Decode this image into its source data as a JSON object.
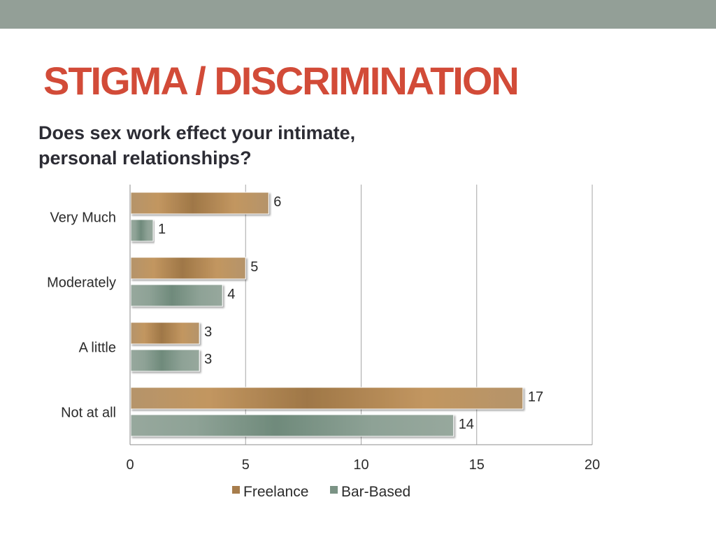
{
  "slide": {
    "title": "STIGMA / DISCRIMINATION",
    "question_lines": [
      "Does sex work effect your intimate,",
      "personal relationships?"
    ]
  },
  "colors": {
    "top_band": "#939f97",
    "title": "#d24b38",
    "freelance": "#a77d4c",
    "bar_based": "#7b9385"
  },
  "chart_data": {
    "type": "bar",
    "orientation": "horizontal",
    "categories": [
      "Very Much",
      "Moderately",
      "A little",
      "Not at all"
    ],
    "series": [
      {
        "name": "Freelance",
        "values": [
          6,
          5,
          3,
          17
        ]
      },
      {
        "name": "Bar-Based",
        "values": [
          1,
          4,
          3,
          14
        ]
      }
    ],
    "xlim": [
      0,
      20
    ],
    "x_ticks": [
      0,
      5,
      10,
      15,
      20
    ],
    "grid": true,
    "data_labels": true,
    "legend": "bottom"
  }
}
